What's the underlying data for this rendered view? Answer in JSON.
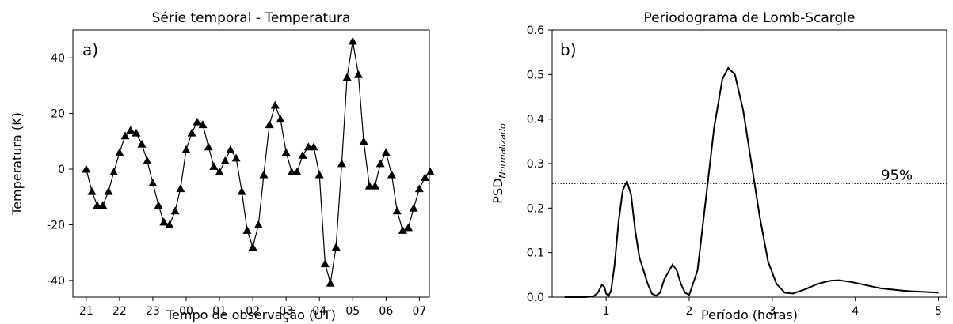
{
  "chart_data": [
    {
      "panel": "a)",
      "type": "line",
      "title": "Série temporal - Temperatura",
      "xlabel": "Tempo de observação (UT)",
      "ylabel": "Temperatura (K)",
      "x_ticks": [
        "21",
        "22",
        "23",
        "00",
        "01",
        "02",
        "03",
        "04",
        "05",
        "06",
        "07"
      ],
      "y_ticks": [
        40,
        20,
        0,
        -20,
        -40
      ],
      "xlim_hours": [
        20.6,
        31.3
      ],
      "ylim": [
        -46,
        50
      ],
      "marker": "triangle",
      "color": "#000000",
      "series": [
        {
          "points": [
            [
              21.0,
              0
            ],
            [
              21.17,
              -8
            ],
            [
              21.33,
              -13
            ],
            [
              21.5,
              -13
            ],
            [
              21.67,
              -8
            ],
            [
              21.83,
              -1
            ],
            [
              22.0,
              6
            ],
            [
              22.17,
              12
            ],
            [
              22.33,
              14
            ],
            [
              22.5,
              13
            ],
            [
              22.67,
              9
            ],
            [
              22.83,
              3
            ],
            [
              23.0,
              -5
            ],
            [
              23.17,
              -13
            ],
            [
              23.33,
              -19
            ],
            [
              23.5,
              -20
            ],
            [
              23.67,
              -15
            ],
            [
              23.83,
              -7
            ],
            [
              24.0,
              7
            ],
            [
              24.17,
              13
            ],
            [
              24.33,
              17
            ],
            [
              24.5,
              16
            ],
            [
              24.67,
              8
            ],
            [
              24.83,
              1
            ],
            [
              25.0,
              -1
            ],
            [
              25.17,
              3
            ],
            [
              25.33,
              7
            ],
            [
              25.5,
              4
            ],
            [
              25.67,
              -8
            ],
            [
              25.83,
              -22
            ],
            [
              26.0,
              -28
            ],
            [
              26.17,
              -20
            ],
            [
              26.33,
              -2
            ],
            [
              26.5,
              16
            ],
            [
              26.67,
              23
            ],
            [
              26.83,
              18
            ],
            [
              27.0,
              6
            ],
            [
              27.17,
              -1
            ],
            [
              27.33,
              -1
            ],
            [
              27.5,
              5
            ],
            [
              27.67,
              8
            ],
            [
              27.83,
              8
            ],
            [
              28.0,
              -2
            ],
            [
              28.17,
              -34
            ],
            [
              28.33,
              -41
            ],
            [
              28.5,
              -28
            ],
            [
              28.67,
              2
            ],
            [
              28.83,
              33
            ],
            [
              29.0,
              46
            ],
            [
              29.17,
              34
            ],
            [
              29.33,
              10
            ],
            [
              29.5,
              -6
            ],
            [
              29.67,
              -6
            ],
            [
              29.83,
              2
            ],
            [
              30.0,
              6
            ],
            [
              30.17,
              -2
            ],
            [
              30.33,
              -15
            ],
            [
              30.5,
              -22
            ],
            [
              30.67,
              -21
            ],
            [
              30.83,
              -14
            ],
            [
              31.0,
              -7
            ],
            [
              31.17,
              -3
            ],
            [
              31.33,
              -1
            ]
          ]
        }
      ]
    },
    {
      "panel": "b)",
      "type": "line",
      "title": "Periodograma de Lomb-Scargle",
      "xlabel": "Período (horas)",
      "ylabel_main": "PSD",
      "ylabel_sub": "Normalizado",
      "x_ticks": [
        1,
        2,
        3,
        4,
        5
      ],
      "y_ticks": [
        0.0,
        0.1,
        0.2,
        0.3,
        0.4,
        0.5,
        0.6
      ],
      "xlim": [
        0.35,
        5.1
      ],
      "ylim": [
        0.0,
        0.6
      ],
      "color": "#000000",
      "series": [
        {
          "points": [
            [
              0.5,
              0.0
            ],
            [
              0.75,
              0.0
            ],
            [
              0.85,
              0.002
            ],
            [
              0.9,
              0.01
            ],
            [
              0.95,
              0.028
            ],
            [
              0.98,
              0.022
            ],
            [
              1.0,
              0.008
            ],
            [
              1.03,
              0.003
            ],
            [
              1.06,
              0.015
            ],
            [
              1.1,
              0.07
            ],
            [
              1.15,
              0.17
            ],
            [
              1.2,
              0.24
            ],
            [
              1.25,
              0.26
            ],
            [
              1.3,
              0.23
            ],
            [
              1.35,
              0.15
            ],
            [
              1.4,
              0.09
            ],
            [
              1.5,
              0.03
            ],
            [
              1.55,
              0.008
            ],
            [
              1.6,
              0.003
            ],
            [
              1.65,
              0.01
            ],
            [
              1.7,
              0.04
            ],
            [
              1.8,
              0.073
            ],
            [
              1.85,
              0.06
            ],
            [
              1.9,
              0.03
            ],
            [
              1.95,
              0.01
            ],
            [
              2.0,
              0.005
            ],
            [
              2.1,
              0.06
            ],
            [
              2.2,
              0.22
            ],
            [
              2.3,
              0.38
            ],
            [
              2.4,
              0.49
            ],
            [
              2.47,
              0.515
            ],
            [
              2.55,
              0.5
            ],
            [
              2.65,
              0.42
            ],
            [
              2.75,
              0.3
            ],
            [
              2.85,
              0.18
            ],
            [
              2.95,
              0.08
            ],
            [
              3.05,
              0.03
            ],
            [
              3.15,
              0.01
            ],
            [
              3.25,
              0.008
            ],
            [
              3.4,
              0.018
            ],
            [
              3.55,
              0.03
            ],
            [
              3.7,
              0.037
            ],
            [
              3.8,
              0.038
            ],
            [
              3.95,
              0.034
            ],
            [
              4.1,
              0.028
            ],
            [
              4.3,
              0.02
            ],
            [
              4.6,
              0.014
            ],
            [
              5.0,
              0.01
            ]
          ]
        }
      ],
      "threshold": {
        "value": 0.255,
        "label": "95%",
        "style": "dotted"
      }
    }
  ]
}
